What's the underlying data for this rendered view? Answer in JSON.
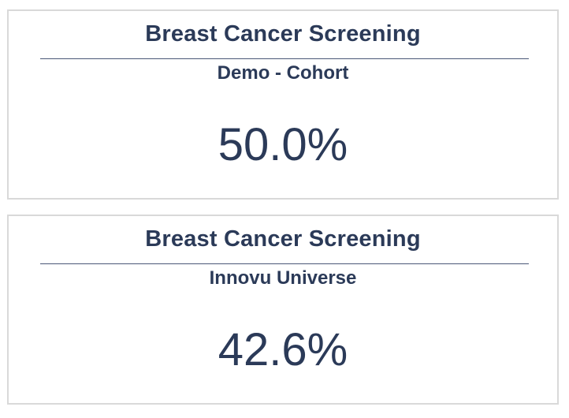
{
  "cards": [
    {
      "title": "Breast Cancer Screening",
      "subtitle": "Demo - Cohort",
      "value": "50.0%"
    },
    {
      "title": "Breast Cancer Screening",
      "subtitle": "Innovu Universe",
      "value": "42.6%"
    }
  ],
  "colors": {
    "text": "#2b3a58",
    "divider": "#4a5877",
    "card_border": "#d9d9d9",
    "background": "#ffffff"
  }
}
